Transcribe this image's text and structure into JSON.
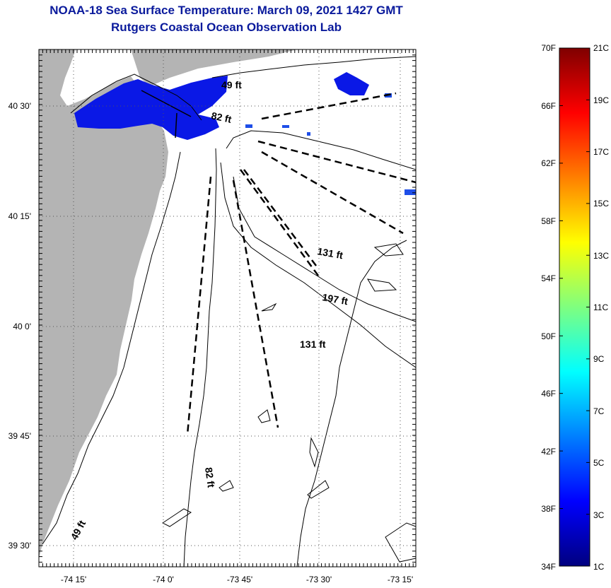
{
  "header": {
    "title": "NOAA-18 Sea Surface Temperature:  March 09, 2021 1427 GMT",
    "subtitle": "Rutgers Coastal Ocean Observation Lab"
  },
  "map": {
    "lon_labels": [
      "-74 15'",
      "-74 0'",
      "-73 45'",
      "-73 30'",
      "-73 15'"
    ],
    "lat_labels": [
      "40 30'",
      "40 15'",
      "40 0'",
      "39 45'",
      "39 30'"
    ],
    "depth_labels": [
      "49 ft",
      "82 ft",
      "131 ft",
      "197 ft",
      "131 ft",
      "82 ft",
      "49 ft"
    ],
    "colors": {
      "land": "#b4b4b4",
      "water": "#ffffff",
      "cold_patch": "#0a18e6",
      "patch_light": "#1e4ee8"
    }
  },
  "colorbar": {
    "fahrenheit_labels": [
      "70F",
      "66F",
      "62F",
      "58F",
      "54F",
      "50F",
      "46F",
      "42F",
      "38F",
      "34F"
    ],
    "celsius_labels": [
      "21C",
      "19C",
      "17C",
      "15C",
      "13C",
      "11C",
      "9C",
      "7C",
      "5C",
      "3C",
      "1C"
    ],
    "colors": [
      "#00007f",
      "#0000ff",
      "#007fff",
      "#00ffff",
      "#7fff7f",
      "#ffff00",
      "#ff7f00",
      "#ff0000",
      "#7f0000"
    ]
  }
}
